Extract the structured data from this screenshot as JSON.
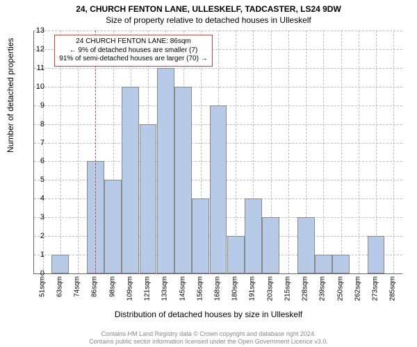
{
  "title_line1": "24, CHURCH FENTON LANE, ULLESKELF, TADCASTER, LS24 9DW",
  "title_line2": "Size of property relative to detached houses in Ulleskelf",
  "ylabel": "Number of detached properties",
  "xlabel": "Distribution of detached houses by size in Ulleskelf",
  "footer_line1": "Contains HM Land Registry data © Crown copyright and database right 2024.",
  "footer_line2": "Contains public sector information licensed under the Open Government Licence v3.0.",
  "annotation": {
    "line1": "24 CHURCH FENTON LANE: 86sqm",
    "line2": "← 9% of detached houses are smaller (7)",
    "line3": "91% of semi-detached houses are larger (70) →",
    "border_color": "#d04040",
    "x_position": 86
  },
  "chart": {
    "type": "histogram",
    "ymin": 0,
    "ymax": 13,
    "yticks": [
      0,
      1,
      2,
      3,
      4,
      5,
      6,
      7,
      8,
      9,
      10,
      11,
      12,
      13
    ],
    "xticks": [
      "51sqm",
      "63sqm",
      "74sqm",
      "86sqm",
      "98sqm",
      "109sqm",
      "121sqm",
      "133sqm",
      "145sqm",
      "156sqm",
      "168sqm",
      "180sqm",
      "191sqm",
      "203sqm",
      "215sqm",
      "228sqm",
      "239sqm",
      "250sqm",
      "262sqm",
      "273sqm",
      "285sqm"
    ],
    "bar_color": "#b7cbe8",
    "bar_border": "#888888",
    "grid_color": "#bbbbbb",
    "marker_color": "#d04040",
    "background": "#ffffff",
    "values": [
      0,
      1,
      0,
      6,
      5,
      10,
      8,
      11,
      10,
      4,
      9,
      2,
      4,
      3,
      0,
      3,
      1,
      1,
      0,
      2,
      0
    ]
  }
}
